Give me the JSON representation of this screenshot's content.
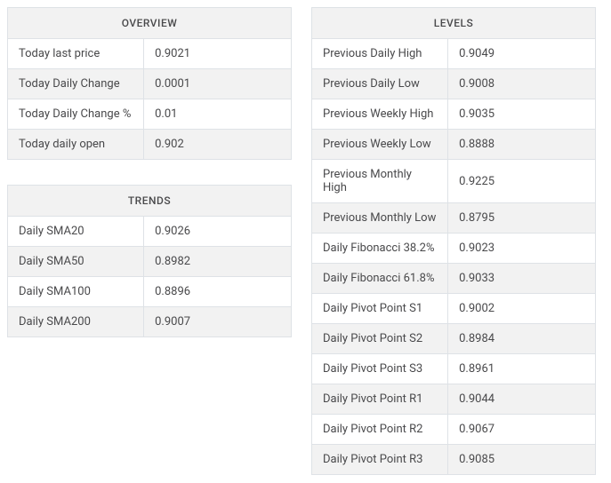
{
  "colors": {
    "border": "#dee2e6",
    "header_bg": "#f2f2f2",
    "row_alt_bg": "#f2f2f2",
    "row_bg": "#ffffff",
    "text": "#49494b"
  },
  "overview": {
    "title": "OVERVIEW",
    "rows": [
      {
        "label": "Today last price",
        "value": "0.9021"
      },
      {
        "label": "Today Daily Change",
        "value": "0.0001"
      },
      {
        "label": "Today Daily Change %",
        "value": "0.01"
      },
      {
        "label": "Today daily open",
        "value": "0.902"
      }
    ]
  },
  "trends": {
    "title": "TRENDS",
    "rows": [
      {
        "label": "Daily SMA20",
        "value": "0.9026"
      },
      {
        "label": "Daily SMA50",
        "value": "0.8982"
      },
      {
        "label": "Daily SMA100",
        "value": "0.8896"
      },
      {
        "label": "Daily SMA200",
        "value": "0.9007"
      }
    ]
  },
  "levels": {
    "title": "LEVELS",
    "rows": [
      {
        "label": "Previous Daily High",
        "value": "0.9049"
      },
      {
        "label": "Previous Daily Low",
        "value": "0.9008"
      },
      {
        "label": "Previous Weekly High",
        "value": "0.9035"
      },
      {
        "label": "Previous Weekly Low",
        "value": "0.8888"
      },
      {
        "label": "Previous Monthly High",
        "value": "0.9225"
      },
      {
        "label": "Previous Monthly Low",
        "value": "0.8795"
      },
      {
        "label": "Daily Fibonacci 38.2%",
        "value": "0.9023"
      },
      {
        "label": "Daily Fibonacci 61.8%",
        "value": "0.9033"
      },
      {
        "label": "Daily Pivot Point S1",
        "value": "0.9002"
      },
      {
        "label": "Daily Pivot Point S2",
        "value": "0.8984"
      },
      {
        "label": "Daily Pivot Point S3",
        "value": "0.8961"
      },
      {
        "label": "Daily Pivot Point R1",
        "value": "0.9044"
      },
      {
        "label": "Daily Pivot Point R2",
        "value": "0.9067"
      },
      {
        "label": "Daily Pivot Point R3",
        "value": "0.9085"
      }
    ]
  }
}
